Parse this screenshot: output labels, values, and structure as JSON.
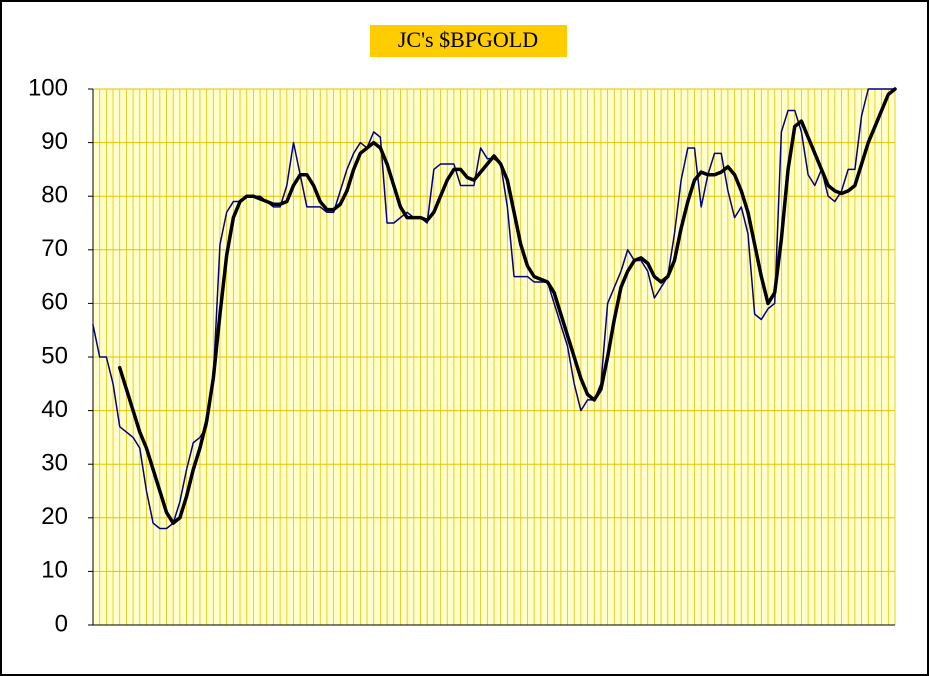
{
  "chart_data": {
    "type": "line",
    "title": "JC's $BPGOLD",
    "categories": [
      null,
      null,
      null,
      null,
      null,
      null,
      null,
      null,
      null,
      null,
      null,
      null,
      null,
      null,
      null,
      null,
      null,
      null,
      null,
      null,
      null,
      null,
      null,
      null,
      null,
      null,
      null,
      null,
      null,
      null,
      null,
      null,
      null,
      null,
      null,
      null,
      null,
      null,
      null,
      null,
      null,
      null,
      null,
      null,
      null,
      null,
      null,
      null,
      null,
      null,
      null,
      null,
      null,
      null,
      null,
      null,
      null,
      null,
      null,
      null,
      null,
      null,
      null,
      null,
      null,
      null,
      null,
      null,
      null,
      null,
      null,
      null,
      null,
      null,
      null,
      null,
      null,
      null,
      null,
      null,
      null,
      null,
      null,
      null,
      null,
      null,
      null,
      null,
      null,
      null,
      null,
      null,
      null,
      null,
      null,
      null,
      null,
      null,
      null,
      null,
      null,
      null,
      null,
      null,
      null,
      null,
      null,
      null,
      null,
      null,
      null,
      null,
      null,
      null,
      null,
      null,
      null,
      null,
      null,
      null,
      null
    ],
    "series": [
      {
        "color": "#000080",
        "width": 1.5,
        "values": [
          56,
          50,
          50,
          45,
          37,
          36,
          35,
          33,
          25,
          19,
          18,
          18,
          19,
          23,
          29,
          34,
          35,
          37,
          46,
          71,
          77,
          79,
          79,
          80,
          80,
          80,
          79,
          78,
          78,
          82,
          90,
          84,
          78,
          78,
          78,
          77,
          77,
          81,
          85,
          88,
          90,
          89,
          92,
          91,
          75,
          75,
          76,
          77,
          76,
          76,
          75,
          85,
          86,
          86,
          86,
          82,
          82,
          82,
          89,
          87,
          87,
          86,
          78,
          65,
          65,
          65,
          64,
          64,
          64,
          60,
          56,
          52,
          45,
          40,
          42,
          42,
          45,
          60,
          63,
          66,
          70,
          68,
          68,
          66,
          61,
          63,
          65,
          73,
          83,
          89,
          89,
          78,
          84,
          88,
          88,
          81,
          76,
          78,
          73,
          58,
          57,
          59,
          60,
          92,
          96,
          96,
          92,
          84,
          82,
          85,
          80,
          79,
          81,
          85,
          85,
          95,
          100,
          100,
          100,
          100,
          100
        ]
      },
      {
        "color": "#000000",
        "width": 3.5,
        "values": [
          null,
          null,
          null,
          null,
          48,
          44,
          40,
          36,
          33,
          29,
          25,
          21,
          19,
          20,
          24,
          29,
          33,
          38,
          46,
          58,
          69,
          76,
          79,
          80,
          80,
          79.5,
          79,
          78.5,
          78.5,
          79,
          82,
          84,
          84,
          82,
          79,
          77.5,
          77.5,
          78.5,
          81,
          85,
          88,
          89,
          90,
          89,
          86,
          82,
          78,
          76,
          76,
          76,
          75.5,
          77,
          80,
          83,
          85,
          85,
          83.5,
          83,
          84.5,
          86,
          87.5,
          86,
          83,
          77,
          71,
          67,
          65,
          64.5,
          64,
          62,
          58,
          54,
          50,
          46,
          43,
          42,
          44,
          50,
          57,
          63,
          66,
          68,
          68.5,
          67.5,
          65,
          64,
          65,
          68,
          74,
          79,
          83,
          84.5,
          84,
          84,
          84.5,
          85.5,
          84,
          81,
          77,
          71,
          65,
          60,
          62,
          72,
          85,
          93,
          94,
          91,
          88,
          85,
          82,
          81,
          80.5,
          81,
          82,
          86,
          90,
          93,
          96,
          99,
          100
        ]
      }
    ],
    "ylim": [
      0,
      100
    ],
    "yticks": [
      0,
      10,
      20,
      30,
      40,
      50,
      60,
      70,
      80,
      90,
      100
    ],
    "grid": true,
    "grid_color": "#e6c200",
    "plot_background": "#ffffcc"
  }
}
